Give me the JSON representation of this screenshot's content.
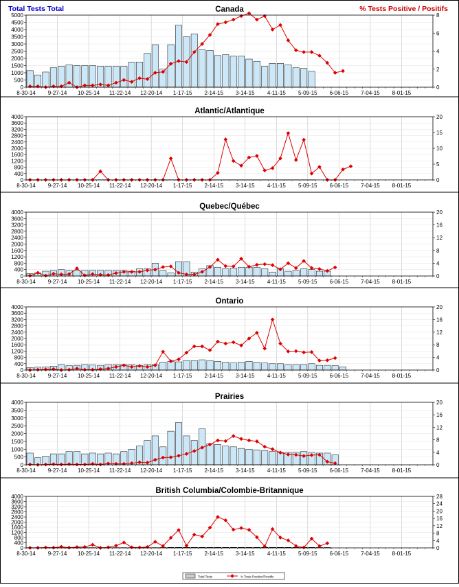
{
  "header": {
    "left_label": "Total Tests Total",
    "right_label": "% Tests Positive / Positifs",
    "left_color": "#0000cc",
    "right_color": "#cc0000"
  },
  "legend": {
    "bars": "Total Tests",
    "line": "% Tests Positive/Positifs"
  },
  "colors": {
    "bar_fill": "#cce8f8",
    "bar_stroke": "#000000",
    "line": "#dd0000",
    "grid": "#bbbbbb"
  },
  "chart_data": [
    {
      "type": "bar+line",
      "title": "Canada",
      "categories": [
        "8-30-14",
        "9-27-14",
        "10-25-14",
        "11-22-14",
        "12-20-14",
        "1-17-15",
        "2-14-15",
        "3-14-15",
        "4-11-15",
        "5-09-15",
        "6-06-15",
        "7-04-15",
        "8-01-15"
      ],
      "ylim_left": [
        0,
        5000
      ],
      "yticks_left": [
        0,
        500,
        1000,
        1500,
        2000,
        2500,
        3000,
        3500,
        4000,
        4500,
        5000
      ],
      "ylim_right": [
        0,
        8
      ],
      "yticks_right": [
        0,
        2,
        4,
        6,
        8
      ],
      "total_tests": [
        1150,
        850,
        1050,
        1350,
        1450,
        1550,
        1500,
        1500,
        1500,
        1450,
        1450,
        1450,
        1450,
        1750,
        1750,
        2350,
        2950,
        1250,
        2950,
        4300,
        3500,
        3700,
        2600,
        2550,
        2200,
        2250,
        2150,
        2150,
        1950,
        1800,
        1450,
        1650,
        1650,
        1550,
        1350,
        1300,
        1100
      ],
      "pct_positive": [
        0.1,
        0.1,
        0,
        0.1,
        0.1,
        0.5,
        0,
        0.2,
        0.2,
        0.3,
        0.2,
        0.5,
        0.8,
        0.6,
        1.0,
        0.9,
        1.6,
        1.7,
        2.6,
        2.9,
        2.8,
        3.9,
        4.8,
        5.8,
        7.0,
        7.2,
        7.5,
        7.9,
        8.2,
        7.5,
        7.9,
        6.4,
        6.9,
        5.2,
        4.1,
        3.9,
        3.9,
        3.5,
        2.7,
        1.6,
        1.8
      ]
    },
    {
      "type": "bar+line",
      "title": "Atlantic/Atlantique",
      "categories": [
        "8-30-14",
        "9-27-14",
        "10-25-14",
        "11-22-14",
        "12-20-14",
        "1-17-15",
        "2-14-15",
        "3-14-15",
        "4-11-15",
        "5-09-15",
        "6-06-15",
        "7-04-15",
        "8-01-15"
      ],
      "ylim_left": [
        0,
        4000
      ],
      "yticks_left": [
        0,
        400,
        800,
        1200,
        1600,
        2000,
        2400,
        2800,
        3200,
        3600,
        4000
      ],
      "ylim_right": [
        0,
        20
      ],
      "yticks_right": [
        0,
        5,
        10,
        15,
        20
      ],
      "total_tests": [
        10,
        10,
        10,
        10,
        10,
        10,
        10,
        10,
        10,
        10,
        10,
        10,
        10,
        10,
        10,
        10,
        10,
        10,
        10,
        10,
        10,
        10,
        10,
        10,
        10,
        10,
        10,
        10,
        10,
        10,
        10,
        10,
        10,
        10,
        10,
        10,
        10
      ],
      "pct_positive": [
        0,
        0,
        0,
        0,
        0,
        0,
        0,
        0,
        0,
        2.7,
        0,
        0,
        0,
        0,
        0,
        0,
        0,
        0,
        6.8,
        0,
        0,
        0,
        0,
        0,
        2.2,
        12.8,
        6.0,
        4.5,
        7.1,
        7.6,
        3.0,
        3.7,
        6.8,
        14.8,
        6.3,
        12.7,
        2.0,
        4.1,
        0,
        0,
        3.3,
        4.3
      ]
    },
    {
      "type": "bar+line",
      "title": "Quebec/Québec",
      "categories": [
        "8-30-14",
        "9-27-14",
        "10-25-14",
        "11-22-14",
        "12-20-14",
        "1-17-15",
        "2-14-15",
        "3-14-15",
        "4-11-15",
        "5-09-15",
        "6-06-15",
        "7-04-15",
        "8-01-15"
      ],
      "ylim_left": [
        0,
        4000
      ],
      "yticks_left": [
        0,
        400,
        800,
        1200,
        1600,
        2000,
        2400,
        2800,
        3200,
        3600,
        4000
      ],
      "ylim_right": [
        0,
        20
      ],
      "yticks_right": [
        0,
        4,
        8,
        12,
        16,
        20
      ],
      "total_tests": [
        150,
        200,
        300,
        350,
        400,
        350,
        350,
        350,
        350,
        350,
        350,
        350,
        350,
        300,
        450,
        450,
        800,
        350,
        200,
        900,
        900,
        250,
        450,
        650,
        550,
        450,
        500,
        550,
        550,
        550,
        450,
        250,
        450,
        300,
        350,
        450,
        400,
        300,
        300
      ],
      "pct_positive": [
        0.1,
        1.0,
        0.1,
        0.7,
        0.5,
        0.6,
        2.4,
        0.2,
        0.6,
        0.4,
        0.3,
        0.9,
        1.3,
        1.3,
        1.3,
        1.8,
        2.0,
        2.8,
        3.0,
        1.0,
        0.5,
        0.5,
        1.3,
        2.8,
        5.1,
        3.1,
        3.0,
        5.4,
        2.9,
        3.5,
        3.7,
        3.4,
        2.1,
        4.0,
        2.5,
        4.7,
        2.5,
        2.2,
        1.6,
        2.7
      ]
    },
    {
      "type": "bar+line",
      "title": "Ontario",
      "categories": [
        "8-30-14",
        "9-27-14",
        "10-25-14",
        "11-22-14",
        "12-20-14",
        "1-17-15",
        "2-14-15",
        "3-14-15",
        "4-11-15",
        "5-09-15",
        "6-06-15",
        "7-04-15",
        "8-01-15"
      ],
      "ylim_left": [
        0,
        4000
      ],
      "yticks_left": [
        0,
        400,
        800,
        1200,
        1600,
        2000,
        2400,
        2800,
        3200,
        3600,
        4000
      ],
      "ylim_right": [
        0,
        20
      ],
      "yticks_right": [
        0,
        4,
        8,
        12,
        16,
        20
      ],
      "total_tests": [
        150,
        180,
        200,
        250,
        350,
        280,
        300,
        350,
        320,
        300,
        350,
        350,
        350,
        350,
        300,
        350,
        350,
        500,
        550,
        520,
        600,
        600,
        650,
        600,
        550,
        500,
        450,
        500,
        550,
        500,
        450,
        400,
        400,
        350,
        350,
        350,
        400,
        300,
        300,
        280,
        200
      ],
      "pct_positive": [
        0,
        0.1,
        0.2,
        0.3,
        0,
        0.1,
        0.5,
        0.1,
        0.1,
        0.3,
        0.5,
        1.0,
        1.5,
        1.0,
        1.3,
        1.0,
        1.5,
        5.8,
        2.8,
        3.4,
        5.5,
        7.5,
        7.5,
        6.3,
        9.0,
        8.4,
        8.8,
        7.8,
        10.0,
        11.8,
        6.8,
        16.0,
        8.4,
        5.9,
        6.0,
        5.6,
        5.7,
        3.0,
        3.1,
        3.8
      ]
    },
    {
      "type": "bar+line",
      "title": "Prairies",
      "categories": [
        "8-30-14",
        "9-27-14",
        "10-25-14",
        "11-22-14",
        "12-20-14",
        "1-17-15",
        "2-14-15",
        "3-14-15",
        "4-11-15",
        "5-09-15",
        "6-06-15",
        "7-04-15",
        "8-01-15"
      ],
      "ylim_left": [
        0,
        4000
      ],
      "yticks_left": [
        0,
        500,
        1000,
        1500,
        2000,
        2500,
        3000,
        3500,
        4000
      ],
      "ylim_right": [
        0,
        20
      ],
      "yticks_right": [
        0,
        4,
        8,
        12,
        16,
        20
      ],
      "total_tests": [
        750,
        450,
        550,
        700,
        700,
        850,
        850,
        700,
        750,
        700,
        750,
        700,
        850,
        1000,
        1200,
        1550,
        1850,
        1150,
        2150,
        2700,
        1850,
        1550,
        2300,
        1350,
        1300,
        1200,
        1150,
        1050,
        1000,
        950,
        900,
        850,
        800,
        800,
        800,
        850,
        800,
        750,
        750,
        650
      ],
      "pct_positive": [
        0.1,
        0,
        0.1,
        0.2,
        0.1,
        0.2,
        0.1,
        0.1,
        0.3,
        0.1,
        0.4,
        0.3,
        0.3,
        0.5,
        0.8,
        0.7,
        1.6,
        2.3,
        2.4,
        2.9,
        3.5,
        4.4,
        5.5,
        6.5,
        7.8,
        7.6,
        9.2,
        8.3,
        7.8,
        7.5,
        5.8,
        5.0,
        3.9,
        3.3,
        3.2,
        2.8,
        3.1,
        3.2,
        1.0,
        0.5
      ]
    },
    {
      "type": "bar+line",
      "title": "British Columbia/Colombie-Britannique",
      "categories": [
        "8-30-14",
        "9-27-14",
        "10-25-14",
        "11-22-14",
        "12-20-14",
        "1-17-15",
        "2-14-15",
        "3-14-15",
        "4-11-15",
        "5-09-15",
        "6-06-15",
        "7-04-15",
        "8-01-15"
      ],
      "ylim_left": [
        0,
        4000
      ],
      "yticks_left": [
        0,
        400,
        800,
        1200,
        1600,
        2000,
        2400,
        2800,
        3200,
        3600,
        4000
      ],
      "ylim_right": [
        0,
        28
      ],
      "yticks_right": [
        0,
        4,
        8,
        12,
        16,
        20,
        24,
        28
      ],
      "total_tests": [
        20,
        20,
        20,
        20,
        20,
        20,
        20,
        20,
        20,
        20,
        20,
        20,
        20,
        20,
        20,
        20,
        20,
        30,
        40,
        40,
        40,
        40,
        40,
        40,
        40,
        40,
        40,
        40,
        40,
        40,
        40,
        40,
        40,
        40,
        40,
        40,
        40,
        30,
        30
      ],
      "pct_positive": [
        0,
        0,
        0.2,
        0.1,
        0.6,
        0.1,
        0.4,
        0.5,
        1.7,
        0,
        0.3,
        1.2,
        2.9,
        0.3,
        0.2,
        0.5,
        3.3,
        1.0,
        5.5,
        9.7,
        1.2,
        7.2,
        6.2,
        11.0,
        16.8,
        15.0,
        9.9,
        10.8,
        9.8,
        5.8,
        0.8,
        10.2,
        5.6,
        4.1,
        1.0,
        0.2,
        5.0,
        1.0,
        2.5
      ]
    }
  ]
}
